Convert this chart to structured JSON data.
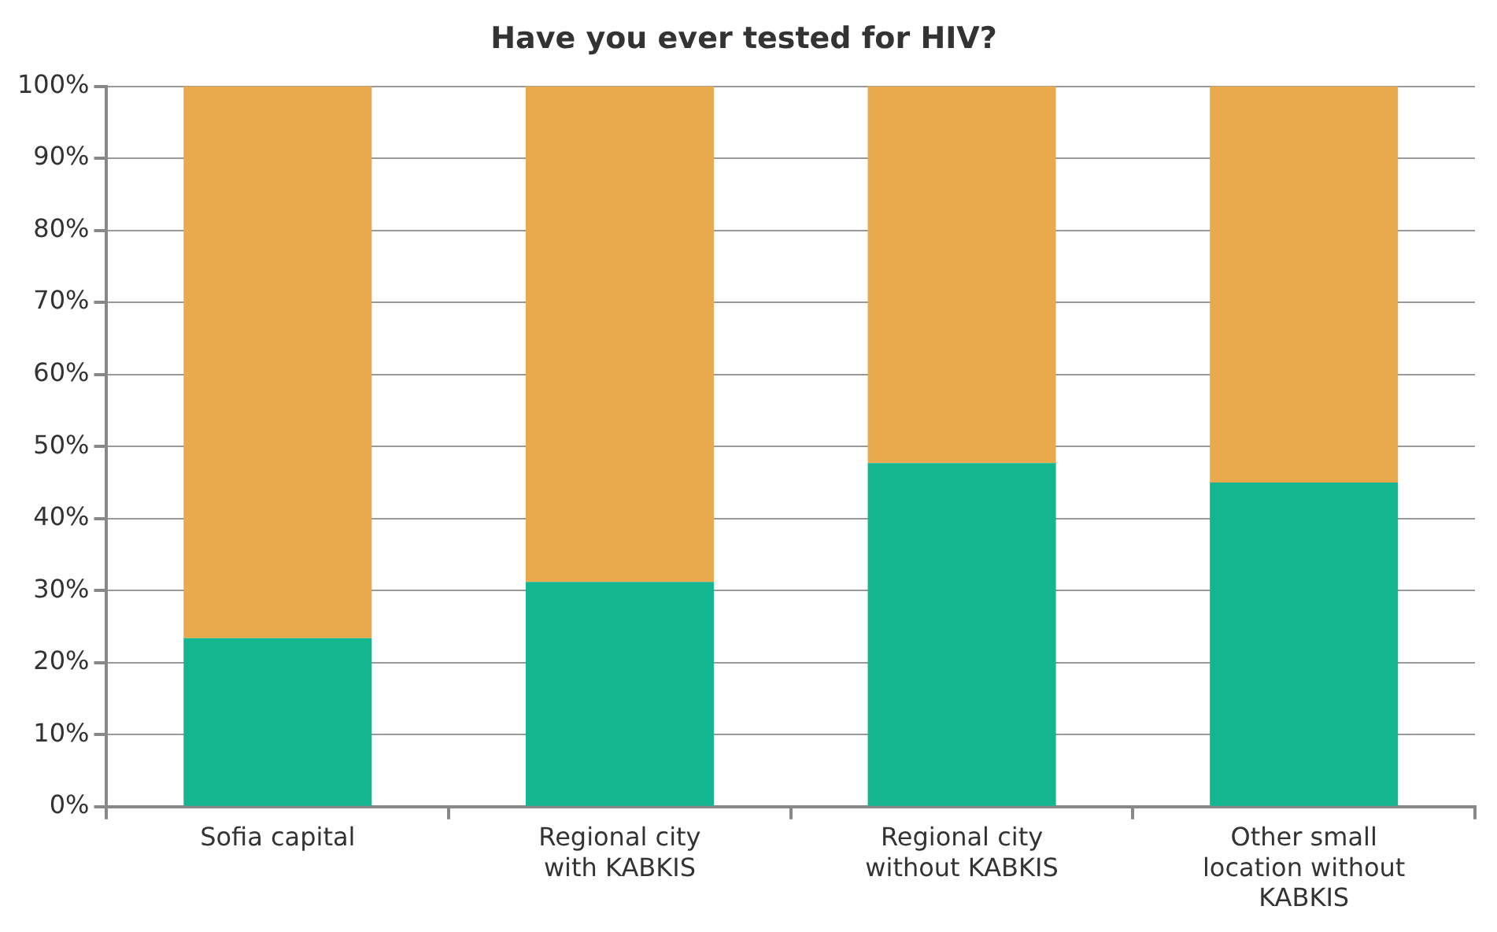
{
  "chart_data": {
    "type": "bar",
    "title": "Have you ever tested for HIV?",
    "categories": [
      "Sofia capital",
      "Regional city with KABKIS",
      "Regional city without KABKIS",
      "Other small location without KABKIS"
    ],
    "stacked": true,
    "series": [
      {
        "color": "#14b690",
        "values": [
          23.4,
          31.2,
          47.7,
          45.0
        ]
      },
      {
        "color": "#e9aa4d",
        "values": [
          76.6,
          68.8,
          52.3,
          55.0
        ]
      }
    ],
    "ylim": [
      0,
      100
    ],
    "yticks": [
      {
        "value": 0,
        "label": "0%"
      },
      {
        "value": 10,
        "label": "10%"
      },
      {
        "value": 20,
        "label": "20%"
      },
      {
        "value": 30,
        "label": "30%"
      },
      {
        "value": 40,
        "label": "40%"
      },
      {
        "value": 50,
        "label": "50%"
      },
      {
        "value": 60,
        "label": "60%"
      },
      {
        "value": 70,
        "label": "70%"
      },
      {
        "value": 80,
        "label": "80%"
      },
      {
        "value": 90,
        "label": "90%"
      },
      {
        "value": 100,
        "label": "100%"
      }
    ],
    "grid": "y",
    "legend": false
  }
}
